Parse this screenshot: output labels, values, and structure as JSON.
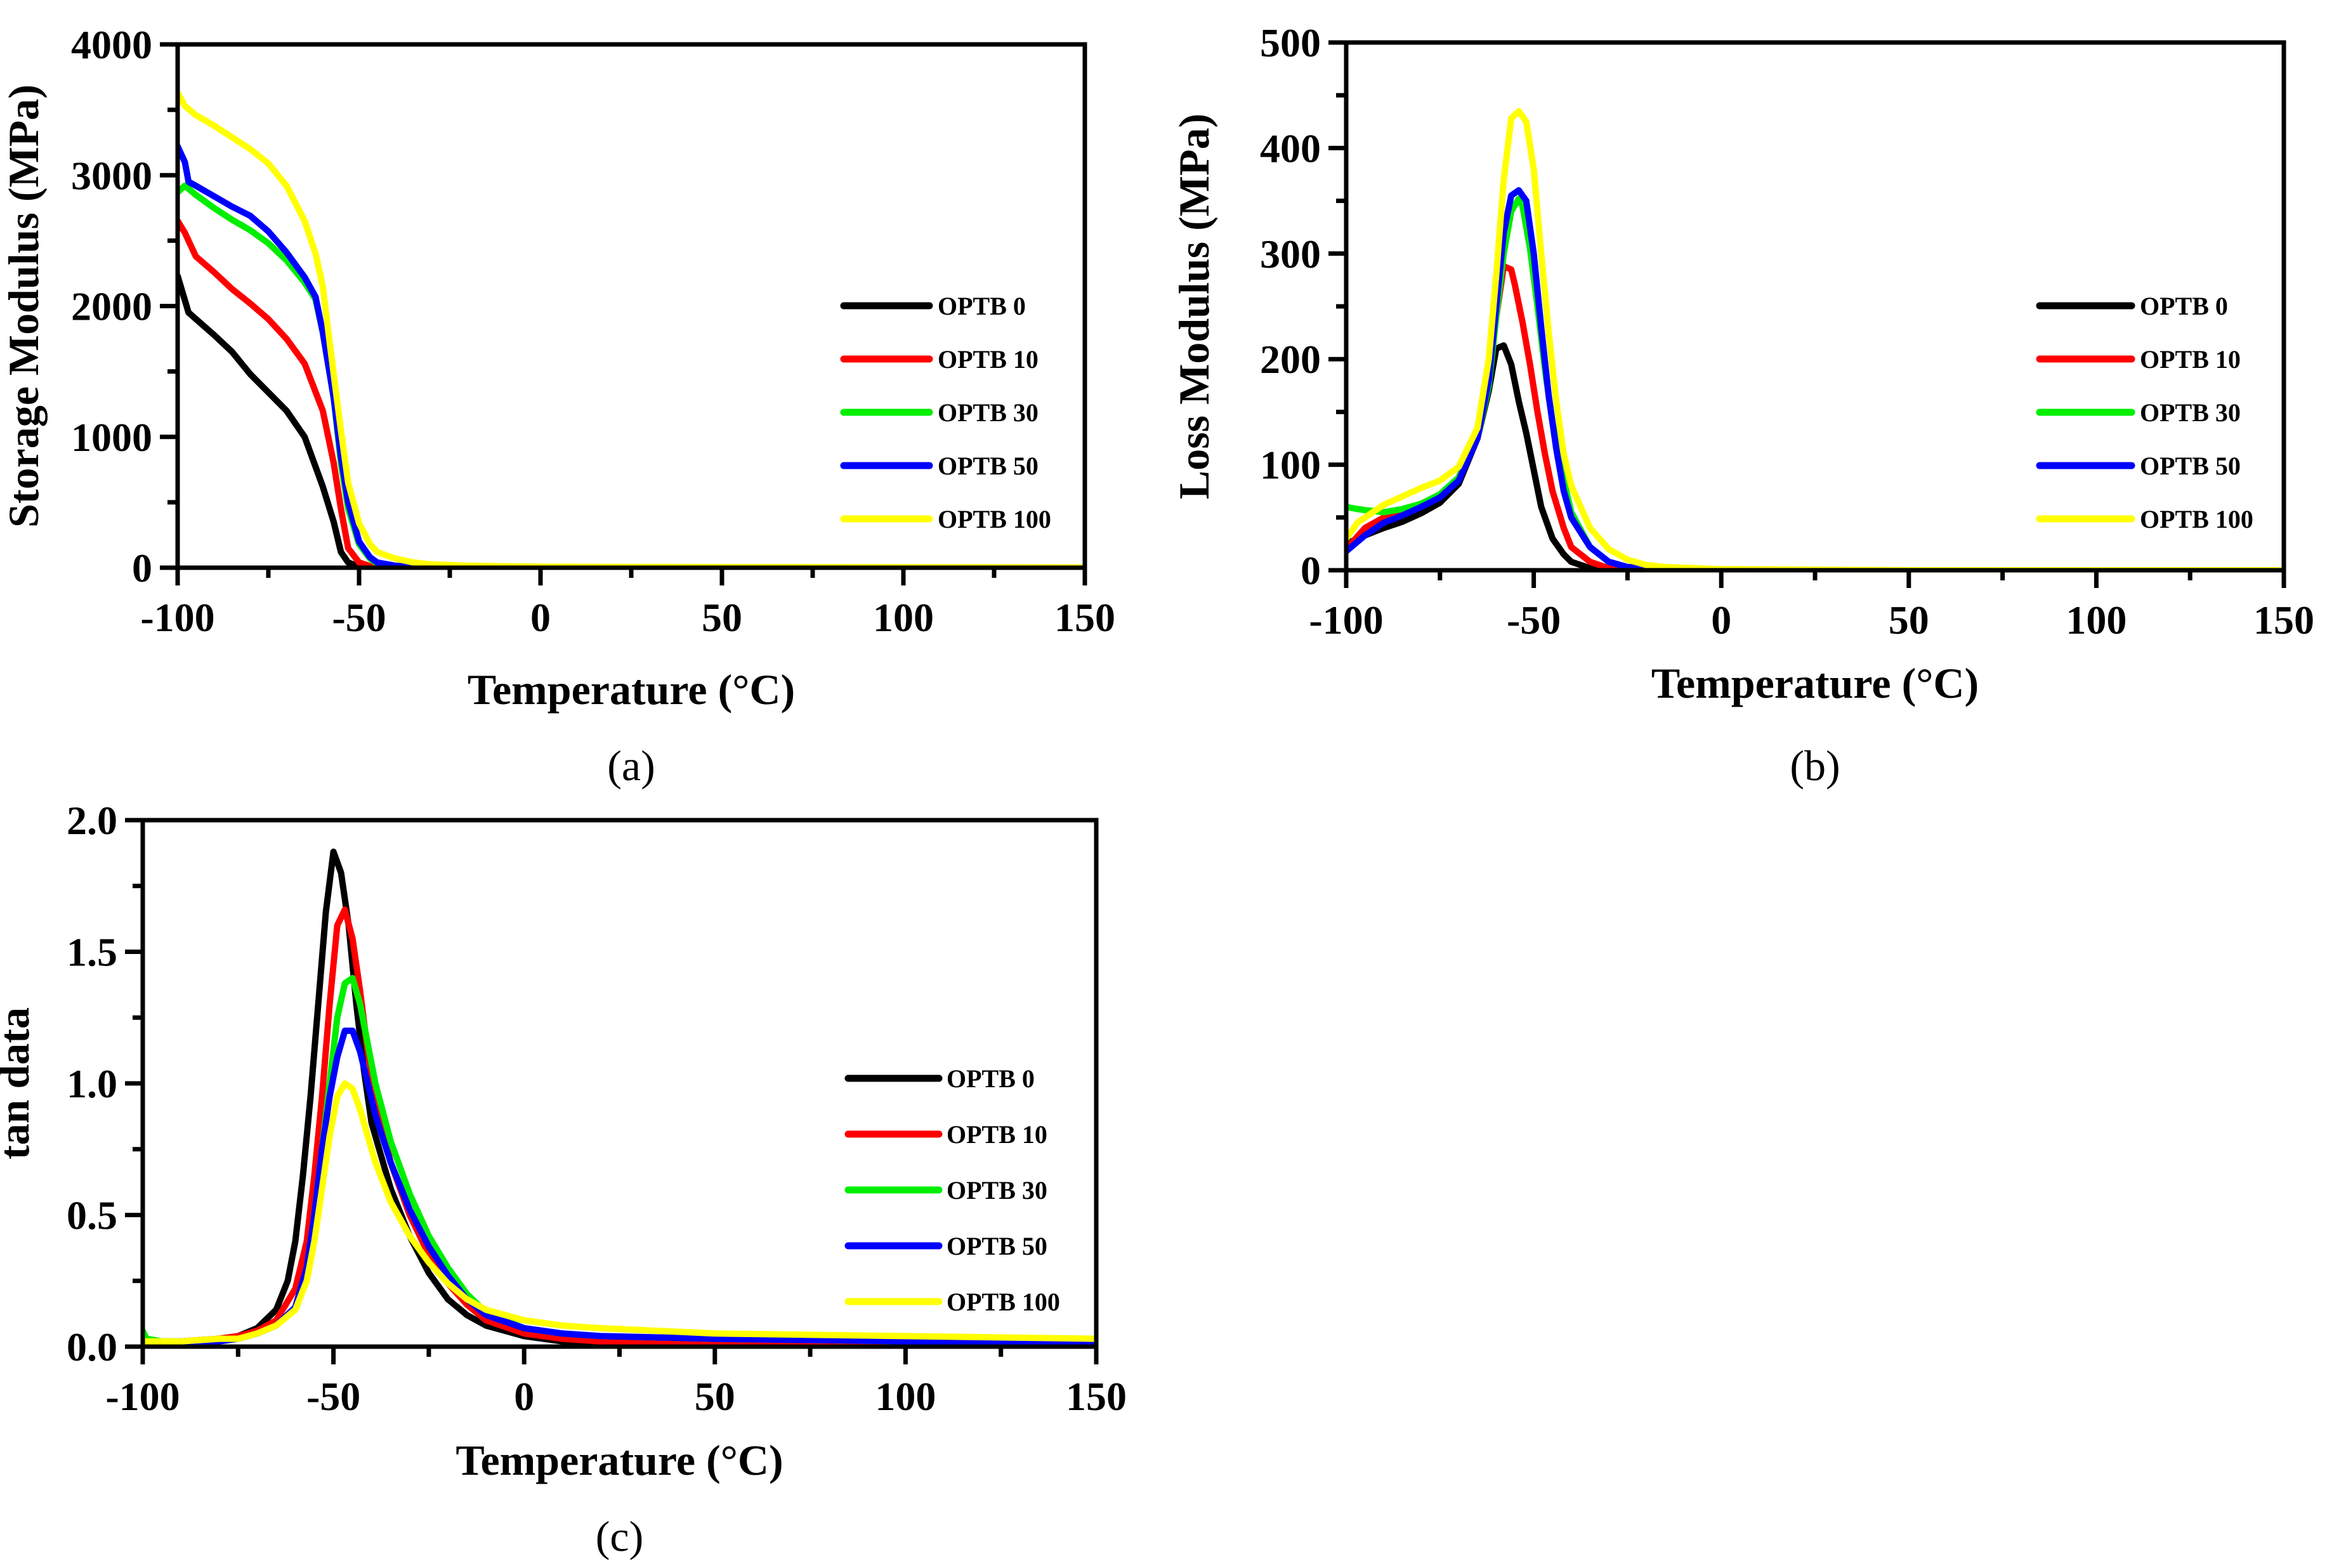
{
  "chart_data": [
    {
      "type": "line",
      "panel_label": "(a)",
      "xlabel": "Temperature (°C)",
      "ylabel": "Storage Modulus (MPa)",
      "xlim": [
        -100,
        150
      ],
      "ylim": [
        0,
        4000
      ],
      "xticks": [
        "-100",
        "-50",
        "0",
        "50",
        "100",
        "150"
      ],
      "yticks": [
        "0",
        "1000",
        "2000",
        "3000",
        "4000"
      ],
      "legend_position": "middle-right",
      "series": [
        {
          "name": "OPTB 0",
          "color": "#000000",
          "x": [
            -100,
            -97,
            -90,
            -85,
            -80,
            -75,
            -70,
            -65,
            -60,
            -57,
            -55,
            -53,
            -50,
            -45,
            -40,
            -30,
            0,
            150
          ],
          "y": [
            2230,
            1950,
            1780,
            1650,
            1480,
            1340,
            1200,
            1000,
            620,
            350,
            120,
            40,
            10,
            5,
            3,
            2,
            1,
            0
          ]
        },
        {
          "name": "OPTB 10",
          "color": "#ff0000",
          "x": [
            -100,
            -98,
            -95,
            -90,
            -85,
            -80,
            -75,
            -70,
            -65,
            -60,
            -57,
            -55,
            -53,
            -50,
            -47,
            -45,
            -40,
            -30,
            0,
            150
          ],
          "y": [
            2650,
            2560,
            2380,
            2260,
            2130,
            2020,
            1900,
            1750,
            1560,
            1200,
            800,
            450,
            150,
            40,
            12,
            8,
            4,
            2,
            1,
            0
          ]
        },
        {
          "name": "OPTB 30",
          "color": "#00ee00",
          "x": [
            -100,
            -98,
            -95,
            -90,
            -85,
            -80,
            -75,
            -70,
            -65,
            -62,
            -60,
            -57,
            -55,
            -53,
            -50,
            -47,
            -45,
            -40,
            -35,
            0,
            150
          ],
          "y": [
            2870,
            2920,
            2850,
            2750,
            2660,
            2580,
            2480,
            2350,
            2180,
            2050,
            1800,
            1300,
            800,
            450,
            180,
            70,
            30,
            10,
            5,
            1,
            0
          ]
        },
        {
          "name": "OPTB 50",
          "color": "#0000ff",
          "x": [
            -100,
            -98,
            -97,
            -95,
            -90,
            -85,
            -80,
            -75,
            -70,
            -65,
            -62,
            -60,
            -57,
            -55,
            -53,
            -50,
            -47,
            -45,
            -40,
            -35,
            0,
            150
          ],
          "y": [
            3220,
            3100,
            2950,
            2920,
            2840,
            2760,
            2690,
            2570,
            2410,
            2220,
            2070,
            1800,
            1300,
            850,
            500,
            200,
            80,
            40,
            15,
            6,
            1,
            0
          ]
        },
        {
          "name": "OPTB 100",
          "color": "#ffff00",
          "x": [
            -100,
            -98,
            -95,
            -90,
            -85,
            -80,
            -75,
            -70,
            -65,
            -62,
            -60,
            -58,
            -55,
            -53,
            -50,
            -47,
            -45,
            -40,
            -35,
            -30,
            -20,
            0,
            50,
            150
          ],
          "y": [
            3630,
            3530,
            3460,
            3380,
            3290,
            3200,
            3090,
            2920,
            2650,
            2400,
            2150,
            1700,
            1050,
            650,
            340,
            180,
            120,
            70,
            40,
            25,
            15,
            8,
            5,
            2
          ]
        }
      ]
    },
    {
      "type": "line",
      "panel_label": "(b)",
      "xlabel": "Temperature (°C)",
      "ylabel": "Loss Modulus (MPa)",
      "xlim": [
        -100,
        150
      ],
      "ylim": [
        0,
        500
      ],
      "xticks": [
        "-100",
        "-50",
        "0",
        "50",
        "100",
        "150"
      ],
      "yticks": [
        "0",
        "100",
        "200",
        "300",
        "400",
        "500"
      ],
      "legend_position": "middle-right",
      "series": [
        {
          "name": "OPTB 0",
          "color": "#000000",
          "x": [
            -100,
            -95,
            -90,
            -85,
            -80,
            -75,
            -70,
            -65,
            -62,
            -60,
            -58,
            -56,
            -54,
            -52,
            -50,
            -48,
            -45,
            -42,
            -40,
            -35,
            0,
            150
          ],
          "y": [
            25,
            33,
            40,
            46,
            54,
            64,
            82,
            125,
            170,
            210,
            213,
            195,
            160,
            130,
            95,
            60,
            30,
            15,
            8,
            2,
            0,
            0
          ]
        },
        {
          "name": "OPTB 10",
          "color": "#ff0000",
          "x": [
            -100,
            -95,
            -90,
            -85,
            -80,
            -75,
            -70,
            -65,
            -62,
            -60,
            -58,
            -56,
            -55,
            -53,
            -51,
            -49,
            -47,
            -45,
            -42,
            -40,
            -35,
            -30,
            0,
            150
          ],
          "y": [
            20,
            40,
            50,
            57,
            63,
            71,
            88,
            130,
            180,
            240,
            288,
            285,
            270,
            235,
            195,
            150,
            110,
            75,
            40,
            22,
            8,
            2,
            0,
            0
          ]
        },
        {
          "name": "OPTB 30",
          "color": "#00ee00",
          "x": [
            -100,
            -97,
            -95,
            -90,
            -85,
            -80,
            -75,
            -70,
            -65,
            -62,
            -60,
            -58,
            -56,
            -54,
            -53,
            -51,
            -49,
            -47,
            -45,
            -42,
            -40,
            -35,
            -30,
            -25,
            0,
            150
          ],
          "y": [
            60,
            58,
            57,
            55,
            58,
            63,
            72,
            88,
            125,
            175,
            240,
            300,
            340,
            352,
            345,
            305,
            250,
            190,
            140,
            85,
            55,
            22,
            8,
            3,
            0,
            0
          ]
        },
        {
          "name": "OPTB 50",
          "color": "#0000ff",
          "x": [
            -100,
            -95,
            -90,
            -85,
            -80,
            -75,
            -70,
            -65,
            -62,
            -60,
            -58,
            -56,
            -54,
            -52,
            -50,
            -48,
            -46,
            -44,
            -42,
            -40,
            -35,
            -30,
            -25,
            0,
            150
          ],
          "y": [
            18,
            33,
            45,
            52,
            60,
            69,
            85,
            125,
            180,
            250,
            320,
            355,
            360,
            350,
            300,
            230,
            165,
            115,
            75,
            50,
            22,
            8,
            3,
            0,
            0
          ]
        },
        {
          "name": "OPTB 100",
          "color": "#ffff00",
          "x": [
            -100,
            -97,
            -95,
            -90,
            -85,
            -80,
            -75,
            -70,
            -65,
            -62,
            -60,
            -58,
            -56,
            -54,
            -52,
            -50,
            -48,
            -46,
            -44,
            -42,
            -40,
            -35,
            -30,
            -25,
            -20,
            -15,
            0,
            50,
            150
          ],
          "y": [
            30,
            45,
            50,
            62,
            70,
            78,
            85,
            98,
            135,
            200,
            280,
            370,
            428,
            435,
            425,
            380,
            300,
            225,
            160,
            110,
            80,
            40,
            20,
            10,
            5,
            3,
            1,
            0,
            0
          ]
        }
      ]
    },
    {
      "type": "line",
      "panel_label": "(c)",
      "xlabel": "Temperature (°C)",
      "ylabel": "tan data",
      "xlim": [
        -100,
        150
      ],
      "ylim": [
        0,
        2.0
      ],
      "xticks": [
        "-100",
        "-50",
        "0",
        "50",
        "100",
        "150"
      ],
      "yticks": [
        "0.0",
        "0.5",
        "1.0",
        "1.5",
        "2.0"
      ],
      "legend_position": "lower-right",
      "series": [
        {
          "name": "OPTB 0",
          "color": "#000000",
          "x": [
            -100,
            -90,
            -80,
            -75,
            -70,
            -65,
            -62,
            -60,
            -58,
            -56,
            -54,
            -52,
            -50,
            -48,
            -46,
            -44,
            -42,
            -40,
            -35,
            -30,
            -25,
            -20,
            -15,
            -10,
            0,
            10,
            20,
            50,
            100,
            150
          ],
          "y": [
            0.01,
            0.02,
            0.03,
            0.04,
            0.07,
            0.14,
            0.25,
            0.4,
            0.65,
            0.95,
            1.3,
            1.65,
            1.88,
            1.8,
            1.6,
            1.3,
            1.05,
            0.85,
            0.6,
            0.42,
            0.28,
            0.18,
            0.12,
            0.08,
            0.04,
            0.02,
            0.01,
            0.0,
            0.0,
            0.0
          ]
        },
        {
          "name": "OPTB 10",
          "color": "#ff0000",
          "x": [
            -100,
            -90,
            -80,
            -75,
            -70,
            -65,
            -60,
            -57,
            -55,
            -53,
            -51,
            -49,
            -47,
            -45,
            -43,
            -41,
            -39,
            -35,
            -30,
            -25,
            -20,
            -15,
            -10,
            0,
            10,
            20,
            50,
            100,
            150
          ],
          "y": [
            0.02,
            0.02,
            0.03,
            0.04,
            0.06,
            0.1,
            0.22,
            0.4,
            0.65,
            0.95,
            1.3,
            1.6,
            1.66,
            1.55,
            1.35,
            1.12,
            0.95,
            0.7,
            0.5,
            0.35,
            0.24,
            0.16,
            0.1,
            0.05,
            0.03,
            0.02,
            0.01,
            0.0,
            0.0
          ]
        },
        {
          "name": "OPTB 30",
          "color": "#00ee00",
          "x": [
            -100,
            -99,
            -95,
            -90,
            -80,
            -75,
            -70,
            -65,
            -60,
            -57,
            -55,
            -53,
            -51,
            -49,
            -47,
            -45,
            -43,
            -41,
            -39,
            -35,
            -30,
            -25,
            -20,
            -15,
            -10,
            0,
            10,
            20,
            50,
            100,
            150
          ],
          "y": [
            0.06,
            0.03,
            0.02,
            0.02,
            0.02,
            0.03,
            0.05,
            0.08,
            0.15,
            0.3,
            0.5,
            0.75,
            1.0,
            1.25,
            1.38,
            1.4,
            1.3,
            1.15,
            1.0,
            0.78,
            0.58,
            0.42,
            0.3,
            0.2,
            0.13,
            0.07,
            0.05,
            0.04,
            0.03,
            0.02,
            0.01
          ]
        },
        {
          "name": "OPTB 50",
          "color": "#0000ff",
          "x": [
            -100,
            -90,
            -80,
            -75,
            -70,
            -65,
            -60,
            -57,
            -55,
            -53,
            -51,
            -49,
            -47,
            -45,
            -43,
            -41,
            -39,
            -35,
            -30,
            -25,
            -20,
            -15,
            -10,
            0,
            10,
            20,
            50,
            100,
            150
          ],
          "y": [
            0.01,
            0.02,
            0.02,
            0.03,
            0.05,
            0.08,
            0.15,
            0.3,
            0.5,
            0.75,
            0.95,
            1.1,
            1.2,
            1.2,
            1.12,
            1.0,
            0.88,
            0.7,
            0.52,
            0.38,
            0.27,
            0.18,
            0.12,
            0.07,
            0.05,
            0.04,
            0.03,
            0.02,
            0.01
          ]
        },
        {
          "name": "OPTB 100",
          "color": "#ffff00",
          "x": [
            -100,
            -90,
            -80,
            -75,
            -70,
            -65,
            -60,
            -57,
            -55,
            -53,
            -51,
            -49,
            -47,
            -45,
            -43,
            -41,
            -39,
            -35,
            -30,
            -25,
            -20,
            -15,
            -10,
            0,
            10,
            20,
            50,
            100,
            150
          ],
          "y": [
            0.02,
            0.02,
            0.03,
            0.03,
            0.05,
            0.08,
            0.14,
            0.25,
            0.4,
            0.6,
            0.8,
            0.95,
            1.0,
            0.98,
            0.9,
            0.8,
            0.7,
            0.55,
            0.42,
            0.32,
            0.24,
            0.18,
            0.14,
            0.1,
            0.08,
            0.07,
            0.05,
            0.04,
            0.03
          ]
        }
      ]
    }
  ]
}
